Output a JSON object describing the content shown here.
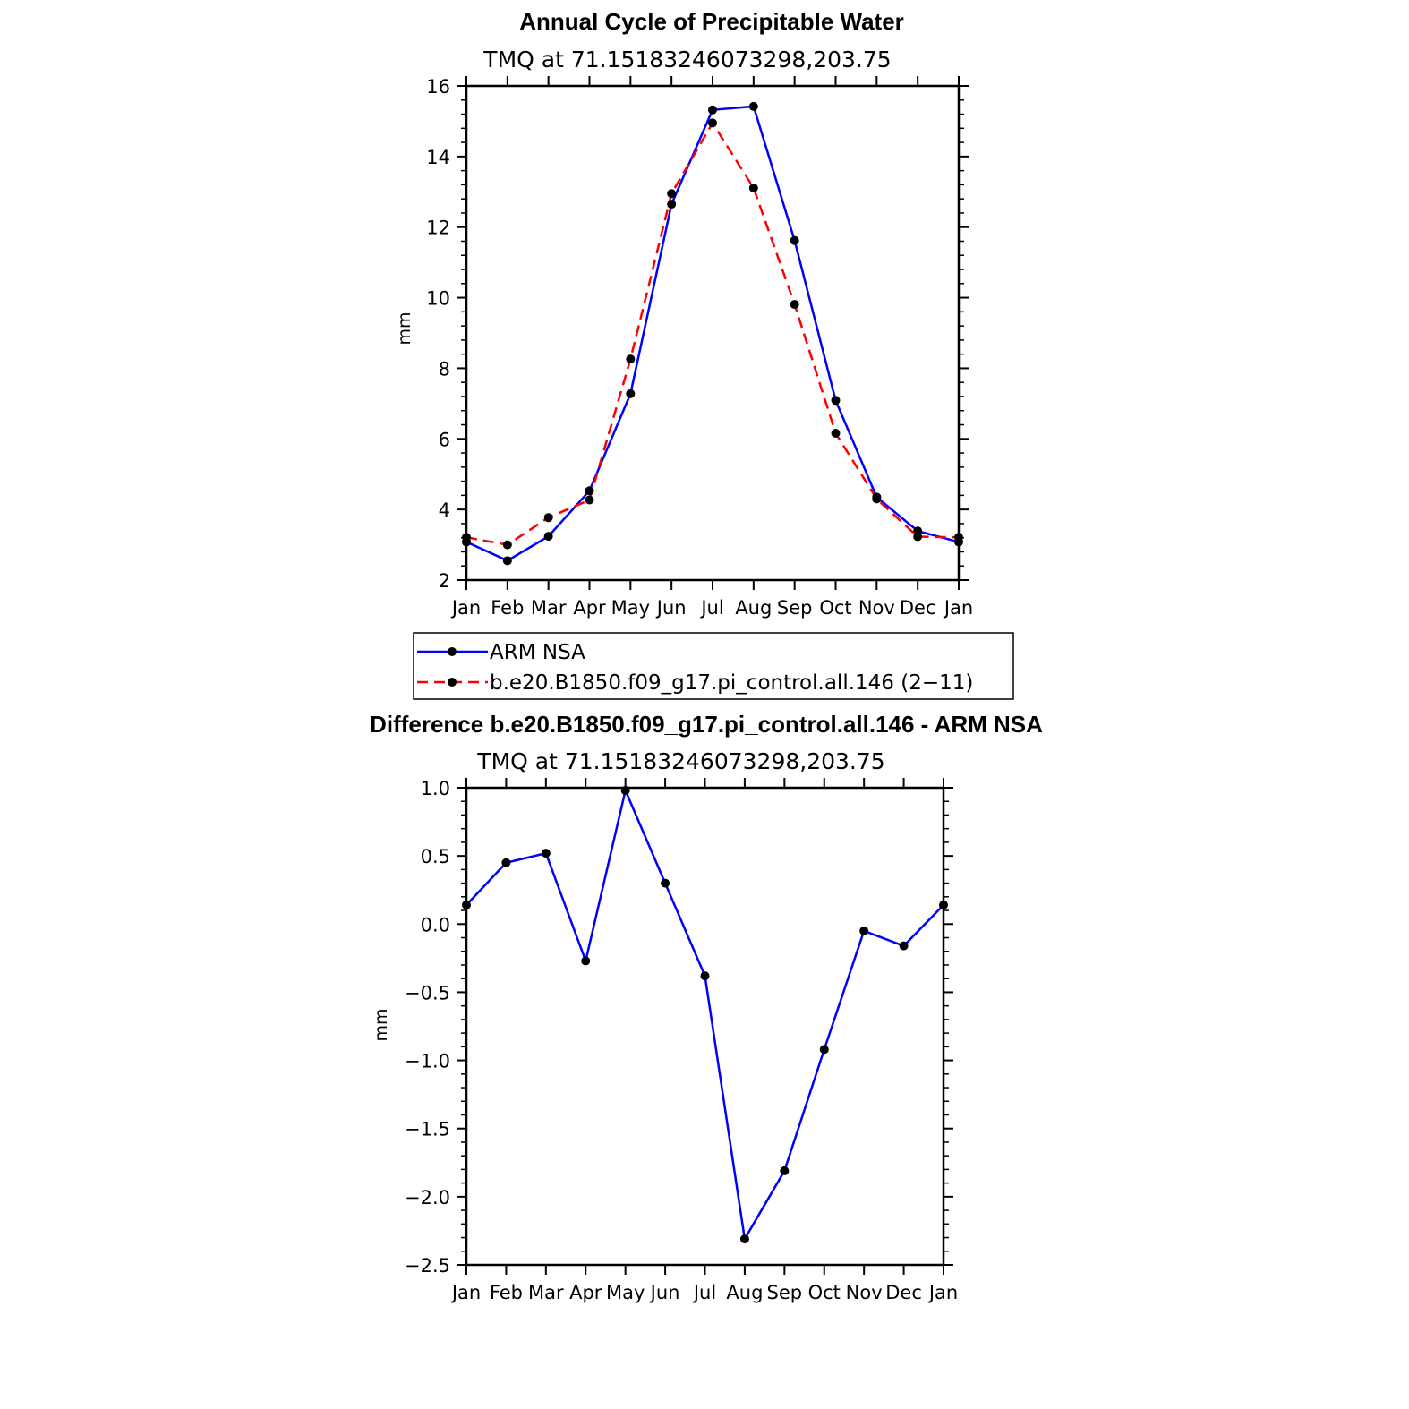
{
  "chart_data": [
    {
      "type": "line",
      "title": "Annual Cycle of Precipitable Water",
      "subtitle": "TMQ at 71.15183246073298,203.75",
      "xlabel": "",
      "ylabel": "mm",
      "categories": [
        "Jan",
        "Feb",
        "Mar",
        "Apr",
        "May",
        "Jun",
        "Jul",
        "Aug",
        "Sep",
        "Oct",
        "Nov",
        "Dec",
        "Jan"
      ],
      "ylim": [
        2,
        16
      ],
      "yticks": [
        "2",
        "4",
        "6",
        "8",
        "10",
        "12",
        "14",
        "16"
      ],
      "series": [
        {
          "name": "ARM NSA",
          "color": "#0000ff",
          "dash": "solid",
          "values": [
            3.08,
            2.55,
            3.24,
            4.53,
            7.28,
            12.65,
            15.32,
            15.42,
            11.62,
            7.09,
            4.35,
            3.39,
            3.08
          ]
        },
        {
          "name": "b.e20.B1850.f09_g17.pi_control.all.146 (2−11)",
          "color": "#ff0000",
          "dash": "dashed",
          "values": [
            3.21,
            3.0,
            3.77,
            4.27,
            8.26,
            12.95,
            14.95,
            13.11,
            9.81,
            6.16,
            4.3,
            3.23,
            3.21
          ]
        }
      ],
      "legend": "bottom"
    },
    {
      "type": "line",
      "title": "Difference b.e20.B1850.f09_g17.pi_control.all.146 - ARM NSA",
      "subtitle": "TMQ at 71.15183246073298,203.75",
      "xlabel": "",
      "ylabel": "mm",
      "categories": [
        "Jan",
        "Feb",
        "Mar",
        "Apr",
        "May",
        "Jun",
        "Jul",
        "Aug",
        "Sep",
        "Oct",
        "Nov",
        "Dec",
        "Jan"
      ],
      "ylim": [
        -2.5,
        1.0
      ],
      "yticks": [
        "1.0",
        "0.5",
        "0.0",
        "−0.5",
        "−1.0",
        "−1.5",
        "−2.0",
        "−2.5"
      ],
      "series": [
        {
          "color": "#0000ff",
          "dash": "solid",
          "values": [
            0.14,
            0.45,
            0.52,
            -0.27,
            0.98,
            0.3,
            -0.38,
            -2.31,
            -1.81,
            -0.92,
            -0.05,
            -0.16,
            0.14
          ]
        }
      ]
    }
  ]
}
